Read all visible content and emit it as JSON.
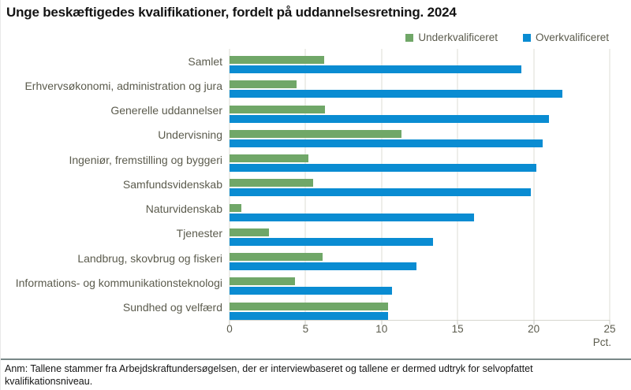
{
  "title": "Unge beskæftigedes kvalifikationer, fordelt på uddannelsesretning. 2024",
  "legend": [
    {
      "label": "Underkvalificeret",
      "color": "#70a768"
    },
    {
      "label": "Overkvalificeret",
      "color": "#0a8cd2"
    }
  ],
  "chart_data": {
    "type": "bar",
    "orientation": "horizontal",
    "title": "Unge beskæftigedes kvalifikationer, fordelt på uddannelsesretning. 2024",
    "categories": [
      "Samlet",
      "Erhvervsøkonomi, administration og jura",
      "Generelle uddannelser",
      "Undervisning",
      "Ingeniør, fremstilling og byggeri",
      "Samfundsvidenskab",
      "Naturvidenskab",
      "Tjenester",
      "Landbrug, skovbrug og fiskeri",
      "Informations- og kommunikationsteknologi",
      "Sundhed og velfærd"
    ],
    "series": [
      {
        "name": "Underkvalificeret",
        "color": "#70a768",
        "values": [
          6.2,
          4.4,
          6.3,
          11.3,
          5.2,
          5.5,
          0.8,
          2.6,
          6.1,
          4.3,
          10.4
        ]
      },
      {
        "name": "Overkvalificeret",
        "color": "#0a8cd2",
        "values": [
          19.2,
          21.9,
          21.0,
          20.6,
          20.2,
          19.8,
          16.1,
          13.4,
          12.3,
          10.7,
          10.4
        ]
      }
    ],
    "xlim": [
      0,
      25
    ],
    "xticks": [
      0,
      5,
      10,
      15,
      20,
      25
    ],
    "unit_label": "Pct.",
    "grid": "vertical",
    "legend_position": "top-right"
  },
  "footnote": "Anm: Tallene stammer fra Arbejdskraftundersøgelsen, der er interviewbaseret og tallene er dermed udtryk for selvopfattet kvalifikationsniveau."
}
